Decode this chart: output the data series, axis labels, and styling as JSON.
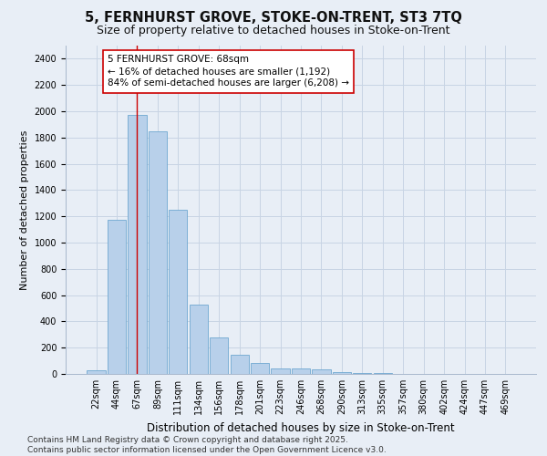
{
  "title1": "5, FERNHURST GROVE, STOKE-ON-TRENT, ST3 7TQ",
  "title2": "Size of property relative to detached houses in Stoke-on-Trent",
  "xlabel": "Distribution of detached houses by size in Stoke-on-Trent",
  "ylabel": "Number of detached properties",
  "categories": [
    "22sqm",
    "44sqm",
    "67sqm",
    "89sqm",
    "111sqm",
    "134sqm",
    "156sqm",
    "178sqm",
    "201sqm",
    "223sqm",
    "246sqm",
    "268sqm",
    "290sqm",
    "313sqm",
    "335sqm",
    "357sqm",
    "380sqm",
    "402sqm",
    "424sqm",
    "447sqm",
    "469sqm"
  ],
  "values": [
    30,
    1175,
    1975,
    1850,
    1250,
    525,
    275,
    145,
    85,
    45,
    45,
    35,
    15,
    10,
    5,
    3,
    2,
    1,
    1,
    1,
    1
  ],
  "bar_color": "#b8d0ea",
  "bar_edge_color": "#6fa8d0",
  "grid_color": "#c8d4e4",
  "background_color": "#e8eef6",
  "vline_x_index": 2,
  "vline_color": "#cc0000",
  "annotation_text": "5 FERNHURST GROVE: 68sqm\n← 16% of detached houses are smaller (1,192)\n84% of semi-detached houses are larger (6,208) →",
  "annotation_box_facecolor": "#ffffff",
  "annotation_box_edgecolor": "#cc0000",
  "ylim": [
    0,
    2500
  ],
  "yticks": [
    0,
    200,
    400,
    600,
    800,
    1000,
    1200,
    1400,
    1600,
    1800,
    2000,
    2200,
    2400
  ],
  "footnote": "Contains HM Land Registry data © Crown copyright and database right 2025.\nContains public sector information licensed under the Open Government Licence v3.0.",
  "title1_fontsize": 10.5,
  "title2_fontsize": 9,
  "xlabel_fontsize": 8.5,
  "ylabel_fontsize": 8,
  "tick_fontsize": 7,
  "annotation_fontsize": 7.5,
  "footnote_fontsize": 6.5
}
